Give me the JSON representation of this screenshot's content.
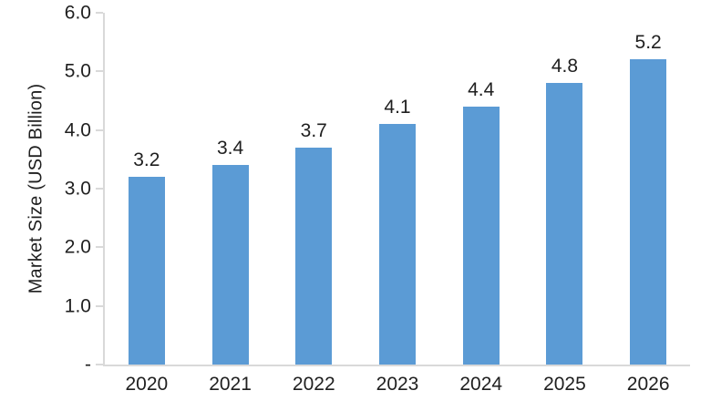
{
  "chart_data": {
    "type": "bar",
    "title": "",
    "categories": [
      "2020",
      "2021",
      "2022",
      "2023",
      "2024",
      "2025",
      "2026"
    ],
    "values": [
      3.2,
      3.4,
      3.7,
      4.1,
      4.4,
      4.8,
      5.2
    ],
    "bar_labels": [
      "3.2",
      "3.4",
      "3.7",
      "4.1",
      "4.4",
      "4.8",
      "5.2"
    ],
    "xlabel": "",
    "ylabel": "Market Size (USD Billion)",
    "ylim": [
      0,
      6
    ],
    "yticks": [
      {
        "value": 0,
        "label": "-"
      },
      {
        "value": 1,
        "label": "1.0"
      },
      {
        "value": 2,
        "label": "2.0"
      },
      {
        "value": 3,
        "label": "3.0"
      },
      {
        "value": 4,
        "label": "4.0"
      },
      {
        "value": 5,
        "label": "5.0"
      },
      {
        "value": 6,
        "label": "6.0"
      }
    ],
    "grid": false,
    "legend": false,
    "bar_color": "#5B9BD5",
    "axis_color": "#D9D9D9",
    "text_color": "#1f1f1f"
  }
}
